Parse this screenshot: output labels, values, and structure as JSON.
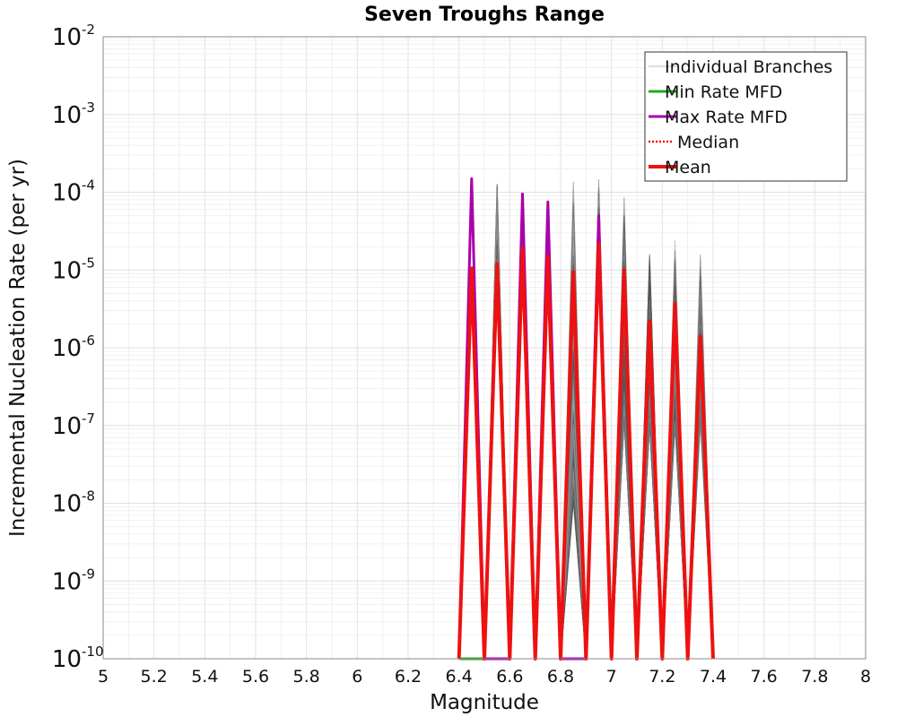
{
  "chart_data": {
    "type": "line",
    "title": "Seven Troughs Range",
    "xlabel": "Magnitude",
    "ylabel": "Incremental Nucleation Rate (per yr)",
    "x_scale": "linear",
    "y_scale": "log",
    "xlim": [
      5,
      8
    ],
    "ylim": [
      1e-10,
      0.01
    ],
    "grid": true,
    "legend_position": "top-right",
    "x_ticks": [
      "5",
      "5.2",
      "5.4",
      "5.6",
      "5.8",
      "6",
      "6.2",
      "6.4",
      "6.6",
      "6.8",
      "7",
      "7.2",
      "7.4",
      "7.6",
      "7.8",
      "8"
    ],
    "y_ticks": [
      {
        "base": "10",
        "exp": "-10"
      },
      {
        "base": "10",
        "exp": "-9"
      },
      {
        "base": "10",
        "exp": "-8"
      },
      {
        "base": "10",
        "exp": "-7"
      },
      {
        "base": "10",
        "exp": "-6"
      },
      {
        "base": "10",
        "exp": "-5"
      },
      {
        "base": "10",
        "exp": "-4"
      },
      {
        "base": "10",
        "exp": "-3"
      },
      {
        "base": "10",
        "exp": "-2"
      }
    ],
    "legend": [
      {
        "label": "Individual Branches",
        "color": "#bbbbbb",
        "style": "thin"
      },
      {
        "label": "Min Rate MFD",
        "color": "#22aa22",
        "style": "solid"
      },
      {
        "label": "Max Rate MFD",
        "color": "#aa00aa",
        "style": "solid"
      },
      {
        "label": "Median",
        "color": "#ee1111",
        "style": "dotted"
      },
      {
        "label": "Mean",
        "color": "#ee1111",
        "style": "thick"
      }
    ],
    "series": [
      {
        "name": "Mean",
        "color": "#ee1111",
        "x": [
          6.4,
          6.45,
          6.5,
          6.55,
          6.6,
          6.65,
          6.7,
          6.75,
          6.8,
          6.85,
          6.9,
          6.95,
          7.0,
          7.05,
          7.1,
          7.15,
          7.2,
          7.25,
          7.3,
          7.35,
          7.4
        ],
        "y": [
          1e-10,
          1.05e-05,
          1e-10,
          1.2e-05,
          1e-10,
          1.9e-05,
          1e-10,
          1.5e-05,
          1e-10,
          9.5e-06,
          1e-10,
          2.2e-05,
          1e-10,
          1e-05,
          1e-10,
          2.2e-06,
          1e-10,
          3.7e-06,
          1e-10,
          1.4e-06,
          1e-10
        ]
      },
      {
        "name": "Median",
        "color": "#ee1111",
        "x": [
          6.4,
          6.45,
          6.5,
          6.55,
          6.6,
          6.65,
          6.7,
          6.75,
          6.8,
          6.85,
          6.9,
          6.95,
          7.0,
          7.05,
          7.1,
          7.15,
          7.2,
          7.25,
          7.3,
          7.35,
          7.4
        ],
        "y": [
          1e-10,
          1.05e-05,
          1e-10,
          1.2e-05,
          1e-10,
          1.9e-05,
          1e-10,
          1.5e-05,
          1e-10,
          9.5e-06,
          1e-10,
          2.2e-05,
          1e-10,
          1e-05,
          1e-10,
          8e-07,
          1e-10,
          1.8e-06,
          1e-10,
          1.4e-06,
          1e-10
        ]
      },
      {
        "name": "Max Rate MFD",
        "color": "#aa00aa",
        "x": [
          6.4,
          6.45,
          6.5,
          6.55,
          6.6,
          6.65,
          6.7,
          6.75,
          6.8,
          6.85,
          6.9,
          6.95,
          7.0
        ],
        "y": [
          1e-10,
          0.00015,
          1e-10,
          1e-10,
          1e-10,
          9.5e-05,
          1e-10,
          7.5e-05,
          1e-10,
          1e-10,
          1e-10,
          5e-05,
          1e-10
        ]
      },
      {
        "name": "Min Rate MFD",
        "color": "#22aa22",
        "x": [
          6.4,
          6.45,
          6.5
        ],
        "y": [
          1e-10,
          1e-10,
          1e-10
        ]
      }
    ],
    "branch_envelope": {
      "color": "#555555",
      "x": [
        6.5,
        6.55,
        6.6,
        6.65,
        6.7,
        6.75,
        6.8,
        6.85,
        6.9,
        6.95,
        7.0,
        7.05,
        7.1,
        7.15,
        7.2,
        7.25,
        7.3,
        7.35,
        7.4
      ],
      "y_low": [
        1e-10,
        1e-05,
        1e-10,
        1.2e-05,
        1e-10,
        1e-05,
        1e-10,
        1e-08,
        1e-10,
        1e-05,
        1e-10,
        1e-07,
        1e-10,
        1e-07,
        1e-10,
        1e-07,
        1e-10,
        1e-07,
        1e-10
      ],
      "y_high": [
        1e-10,
        0.000135,
        1e-10,
        8.5e-05,
        1e-10,
        6e-05,
        1e-10,
        0.00014,
        1e-10,
        0.00015,
        1e-10,
        0.000145,
        1e-10,
        2.5e-05,
        1e-10,
        2.5e-05,
        1e-10,
        2.3e-05,
        1e-10
      ]
    }
  }
}
